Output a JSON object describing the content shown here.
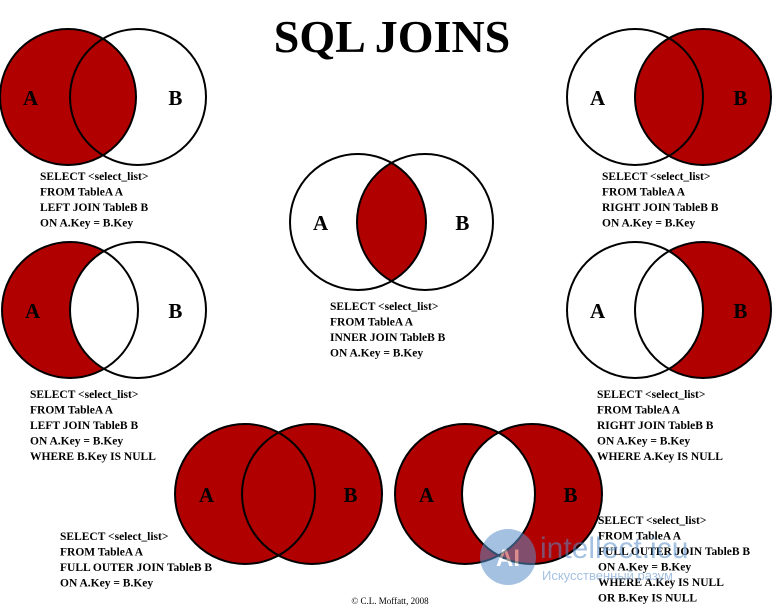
{
  "title": "SQL JOINS",
  "diagrams": [
    {
      "a": "A",
      "b": "B",
      "sql": [
        "SELECT <select_list>",
        "FROM TableA A",
        "LEFT JOIN TableB B",
        "ON A.Key = B.Key"
      ]
    },
    {
      "a": "A",
      "b": "B",
      "sql": [
        "SELECT <select_list>",
        "FROM TableA A",
        "RIGHT JOIN TableB B",
        "ON A.Key = B.Key"
      ]
    },
    {
      "a": "A",
      "b": "B",
      "sql": [
        "SELECT <select_list>",
        "FROM TableA A",
        "INNER JOIN TableB B",
        "ON A.Key = B.Key"
      ]
    },
    {
      "a": "A",
      "b": "B",
      "sql": [
        "SELECT <select_list>",
        "FROM TableA A",
        "LEFT JOIN TableB B",
        "ON A.Key = B.Key",
        "WHERE B.Key IS NULL"
      ]
    },
    {
      "a": "A",
      "b": "B",
      "sql": [
        "SELECT <select_list>",
        "FROM TableA A",
        "RIGHT JOIN TableB B",
        "ON A.Key = B.Key",
        "WHERE A.Key IS NULL"
      ]
    },
    {
      "a": "A",
      "b": "B",
      "sql": [
        "SELECT <select_list>",
        "FROM TableA A",
        "FULL OUTER JOIN TableB B",
        "ON A.Key = B.Key"
      ]
    },
    {
      "a": "A",
      "b": "B",
      "sql": [
        "SELECT <select_list>",
        "FROM TableA A",
        "FULL OUTER JOIN TableB B",
        "ON A.Key = B.Key",
        "WHERE A.Key IS NULL",
        "OR B.Key IS NULL"
      ]
    }
  ],
  "copyright": "© C.L. Moffatt, 2008",
  "watermark": {
    "brand": "intellect.icu",
    "tagline": "Искусственный разум"
  }
}
